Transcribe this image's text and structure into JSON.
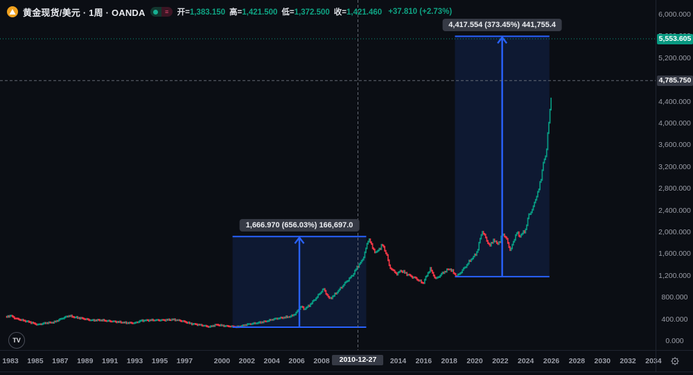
{
  "header": {
    "title": "黄金现货/美元 · 1周 · OANDA",
    "ohlc": {
      "open_label": "开=",
      "open": "1,383.150",
      "high_label": "高=",
      "high": "1,421.500",
      "low_label": "低=",
      "low": "1,372.500",
      "close_label": "收=",
      "close": "1,421.460",
      "change": "+37.810 (+2.73%)"
    }
  },
  "colors": {
    "background": "#0b0e14",
    "up": "#089981",
    "down": "#f23645",
    "measure_blue": "#2962ff",
    "measure_fill": "rgba(41,98,255,0.13)",
    "badge_gray": "#363a45",
    "badge_teal": "#089981",
    "crosshair": "#767a85",
    "axis_text": "#9b9ea8"
  },
  "chart_data": {
    "type": "candlestick",
    "title": "Gold Spot / U.S. Dollar, 1 week, OANDA",
    "ylim": [
      0,
      6300
    ],
    "x_visible_years": [
      1982.5,
      2035.5
    ],
    "last_price": 5553.605,
    "grid": false,
    "anchors_year_close": [
      [
        1982.55,
        430
      ],
      [
        1983.0,
        470
      ],
      [
        1983.4,
        415
      ],
      [
        1984.0,
        380
      ],
      [
        1984.6,
        345
      ],
      [
        1985.2,
        300
      ],
      [
        1985.8,
        330
      ],
      [
        1986.5,
        345
      ],
      [
        1987.0,
        400
      ],
      [
        1987.7,
        465
      ],
      [
        1988.2,
        435
      ],
      [
        1988.8,
        415
      ],
      [
        1989.5,
        380
      ],
      [
        1990.2,
        385
      ],
      [
        1990.8,
        370
      ],
      [
        1991.5,
        355
      ],
      [
        1992.3,
        335
      ],
      [
        1993.0,
        330
      ],
      [
        1993.5,
        375
      ],
      [
        1994.3,
        383
      ],
      [
        1995.3,
        384
      ],
      [
        1996.1,
        395
      ],
      [
        1996.8,
        368
      ],
      [
        1997.5,
        320
      ],
      [
        1998.3,
        293
      ],
      [
        1999.0,
        260
      ],
      [
        1999.55,
        300
      ],
      [
        2000.2,
        278
      ],
      [
        2001.0,
        262
      ],
      [
        2001.3,
        258
      ],
      [
        2002.0,
        305
      ],
      [
        2002.8,
        330
      ],
      [
        2003.5,
        360
      ],
      [
        2004.2,
        405
      ],
      [
        2004.9,
        430
      ],
      [
        2005.5,
        450
      ],
      [
        2005.9,
        500
      ],
      [
        2006.35,
        640
      ],
      [
        2006.6,
        585
      ],
      [
        2007.0,
        650
      ],
      [
        2007.6,
        800
      ],
      [
        2008.15,
        960
      ],
      [
        2008.6,
        780
      ],
      [
        2008.85,
        810
      ],
      [
        2009.3,
        920
      ],
      [
        2009.9,
        1080
      ],
      [
        2010.4,
        1200
      ],
      [
        2010.9,
        1400
      ],
      [
        2011.2,
        1480
      ],
      [
        2011.6,
        1800
      ],
      [
        2011.73,
        1890
      ],
      [
        2012.0,
        1700
      ],
      [
        2012.3,
        1620
      ],
      [
        2012.75,
        1770
      ],
      [
        2013.1,
        1600
      ],
      [
        2013.3,
        1380
      ],
      [
        2013.6,
        1290
      ],
      [
        2013.95,
        1230
      ],
      [
        2014.2,
        1300
      ],
      [
        2014.7,
        1230
      ],
      [
        2015.0,
        1190
      ],
      [
        2015.4,
        1150
      ],
      [
        2015.95,
        1060
      ],
      [
        2016.5,
        1330
      ],
      [
        2016.95,
        1140
      ],
      [
        2017.6,
        1270
      ],
      [
        2018.05,
        1330
      ],
      [
        2018.6,
        1185
      ],
      [
        2019.0,
        1290
      ],
      [
        2019.45,
        1420
      ],
      [
        2019.7,
        1500
      ],
      [
        2020.0,
        1570
      ],
      [
        2020.2,
        1650
      ],
      [
        2020.58,
        2030
      ],
      [
        2020.9,
        1870
      ],
      [
        2021.2,
        1740
      ],
      [
        2021.45,
        1870
      ],
      [
        2021.7,
        1790
      ],
      [
        2022.0,
        1830
      ],
      [
        2022.2,
        1990
      ],
      [
        2022.55,
        1840
      ],
      [
        2022.8,
        1650
      ],
      [
        2023.1,
        1880
      ],
      [
        2023.3,
        1990
      ],
      [
        2023.55,
        1930
      ],
      [
        2023.8,
        1990
      ],
      [
        2024.0,
        2060
      ],
      [
        2024.25,
        2330
      ],
      [
        2024.55,
        2420
      ],
      [
        2024.8,
        2650
      ],
      [
        2025.0,
        2750
      ],
      [
        2025.15,
        2950
      ],
      [
        2025.3,
        3150
      ],
      [
        2025.42,
        3350
      ],
      [
        2025.5,
        3280
      ],
      [
        2025.62,
        3550
      ],
      [
        2025.72,
        3800
      ],
      [
        2025.82,
        4050
      ],
      [
        2025.92,
        4250
      ],
      [
        2025.98,
        4450
      ],
      [
        2026.05,
        5553.6
      ]
    ]
  },
  "measurements": [
    {
      "label": "1,666.970 (656.03%) 166,697.0",
      "start": {
        "year": 2000.85,
        "price": 254.1
      },
      "end": {
        "year": 2011.5,
        "price": 1921.1
      }
    },
    {
      "label": "4,417.554 (373.45%) 441,755.4",
      "start": {
        "year": 2018.45,
        "price": 1182.9
      },
      "end": {
        "year": 2025.85,
        "price": 5600.5
      }
    }
  ],
  "crosshair": {
    "year": 2010.85,
    "price": 4785.75,
    "date_label": "2010-12-27",
    "price_label": "4,785.750"
  },
  "price_axis": {
    "last_price_label": "5,553.605",
    "crosshair_price_label": "4,785.750",
    "ticks": [
      {
        "value": 6000,
        "label": "6,000.000"
      },
      {
        "value": 5600,
        "label": "5,600.000"
      },
      {
        "value": 5200,
        "label": "5,200.000"
      },
      {
        "value": 4800,
        "label": "4,800.000"
      },
      {
        "value": 4400,
        "label": "4,400.000"
      },
      {
        "value": 4000,
        "label": "4,000.000"
      },
      {
        "value": 3600,
        "label": "3,600.000"
      },
      {
        "value": 3200,
        "label": "3,200.000"
      },
      {
        "value": 2800,
        "label": "2,800.000"
      },
      {
        "value": 2400,
        "label": "2,400.000"
      },
      {
        "value": 2000,
        "label": "2,000.000"
      },
      {
        "value": 1600,
        "label": "1,600.000"
      },
      {
        "value": 1200,
        "label": "1,200.000"
      },
      {
        "value": 800,
        "label": "800.000"
      },
      {
        "value": 400,
        "label": "400.000"
      },
      {
        "value": 0,
        "label": "0.000"
      }
    ]
  },
  "time_axis": {
    "crosshair_date_label": "2010-12-27",
    "ticks": [
      {
        "year": 1983,
        "label": "1983"
      },
      {
        "year": 1985,
        "label": "1985"
      },
      {
        "year": 1987,
        "label": "1987"
      },
      {
        "year": 1989,
        "label": "1989"
      },
      {
        "year": 1991,
        "label": "1991"
      },
      {
        "year": 1993,
        "label": "1993"
      },
      {
        "year": 1995,
        "label": "1995"
      },
      {
        "year": 1997,
        "label": "1997"
      },
      {
        "year": 2000,
        "label": "2000"
      },
      {
        "year": 2002,
        "label": "2002"
      },
      {
        "year": 2004,
        "label": "2004"
      },
      {
        "year": 2006,
        "label": "2006"
      },
      {
        "year": 2008,
        "label": "2008"
      },
      {
        "year": 2014,
        "label": "2014"
      },
      {
        "year": 2016,
        "label": "2016"
      },
      {
        "year": 2018,
        "label": "2018"
      },
      {
        "year": 2020,
        "label": "2020"
      },
      {
        "year": 2022,
        "label": "2022"
      },
      {
        "year": 2024,
        "label": "2024"
      },
      {
        "year": 2026,
        "label": "2026"
      },
      {
        "year": 2028,
        "label": "2028"
      },
      {
        "year": 2030,
        "label": "2030"
      },
      {
        "year": 2032,
        "label": "2032"
      },
      {
        "year": 2034,
        "label": "2034"
      }
    ]
  },
  "footer": {
    "logo": "TV"
  }
}
